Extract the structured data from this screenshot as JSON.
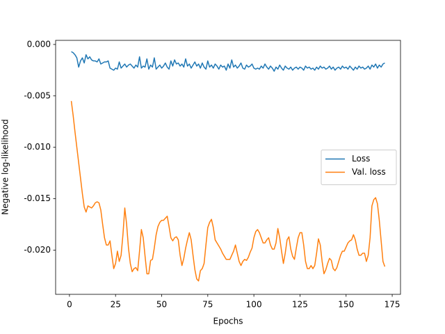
{
  "chart_data": {
    "type": "line",
    "xlabel": "Epochs",
    "ylabel": "Negative log-likelihood",
    "x": [
      1,
      2,
      3,
      4,
      5,
      6,
      7,
      8,
      9,
      10,
      11,
      12,
      13,
      14,
      15,
      16,
      17,
      18,
      19,
      20,
      21,
      22,
      23,
      24,
      25,
      26,
      27,
      28,
      29,
      30,
      31,
      32,
      33,
      34,
      35,
      36,
      37,
      38,
      39,
      40,
      41,
      42,
      43,
      44,
      45,
      46,
      47,
      48,
      49,
      50,
      51,
      52,
      53,
      54,
      55,
      56,
      57,
      58,
      59,
      60,
      61,
      62,
      63,
      64,
      65,
      66,
      67,
      68,
      69,
      70,
      71,
      72,
      73,
      74,
      75,
      76,
      77,
      78,
      79,
      80,
      81,
      82,
      83,
      84,
      85,
      86,
      87,
      88,
      89,
      90,
      91,
      92,
      93,
      94,
      95,
      96,
      97,
      98,
      99,
      100,
      101,
      102,
      103,
      104,
      105,
      106,
      107,
      108,
      109,
      110,
      111,
      112,
      113,
      114,
      115,
      116,
      117,
      118,
      119,
      120,
      121,
      122,
      123,
      124,
      125,
      126,
      127,
      128,
      129,
      130,
      131,
      132,
      133,
      134,
      135,
      136,
      137,
      138,
      139,
      140,
      141,
      142,
      143,
      144,
      145,
      146,
      147,
      148,
      149,
      150,
      151,
      152,
      153,
      154,
      155,
      156,
      157,
      158,
      159,
      160,
      161,
      162,
      163,
      164,
      165,
      166,
      167,
      168,
      169,
      170,
      171
    ],
    "series": [
      {
        "name": "Loss",
        "color": "#1f77b4",
        "values": [
          -0.0007,
          -0.0008,
          -0.001,
          -0.0013,
          -0.0022,
          -0.0016,
          -0.0013,
          -0.0018,
          -0.001,
          -0.0014,
          -0.0012,
          -0.0015,
          -0.0016,
          -0.0016,
          -0.0017,
          -0.0014,
          -0.0019,
          -0.0018,
          -0.0017,
          -0.0017,
          -0.0016,
          -0.0023,
          -0.0024,
          -0.0025,
          -0.0023,
          -0.0024,
          -0.0017,
          -0.0023,
          -0.0021,
          -0.0019,
          -0.0022,
          -0.002,
          -0.0019,
          -0.0021,
          -0.0023,
          -0.002,
          -0.0022,
          -0.0012,
          -0.0023,
          -0.0021,
          -0.0022,
          -0.0014,
          -0.0024,
          -0.002,
          -0.0022,
          -0.0013,
          -0.0024,
          -0.0022,
          -0.002,
          -0.0023,
          -0.0021,
          -0.0018,
          -0.0022,
          -0.0024,
          -0.0016,
          -0.0021,
          -0.0015,
          -0.0019,
          -0.0018,
          -0.0021,
          -0.0019,
          -0.0022,
          -0.0014,
          -0.0021,
          -0.0019,
          -0.0023,
          -0.002,
          -0.0017,
          -0.0021,
          -0.0019,
          -0.0023,
          -0.0018,
          -0.0022,
          -0.0024,
          -0.0016,
          -0.0022,
          -0.002,
          -0.0023,
          -0.0019,
          -0.0021,
          -0.0024,
          -0.002,
          -0.0022,
          -0.0021,
          -0.0025,
          -0.0019,
          -0.0023,
          -0.0015,
          -0.0022,
          -0.002,
          -0.0023,
          -0.0021,
          -0.0018,
          -0.0023,
          -0.0024,
          -0.002,
          -0.0022,
          -0.0021,
          -0.0019,
          -0.0023,
          -0.0024,
          -0.0023,
          -0.0024,
          -0.0021,
          -0.0023,
          -0.0019,
          -0.0022,
          -0.0024,
          -0.0021,
          -0.0023,
          -0.0026,
          -0.0022,
          -0.0024,
          -0.002,
          -0.0023,
          -0.0025,
          -0.0021,
          -0.0023,
          -0.0024,
          -0.0022,
          -0.0025,
          -0.0023,
          -0.0022,
          -0.0024,
          -0.0022,
          -0.0023,
          -0.0025,
          -0.0021,
          -0.0023,
          -0.0022,
          -0.0024,
          -0.0023,
          -0.0025,
          -0.0022,
          -0.0024,
          -0.0021,
          -0.0023,
          -0.0022,
          -0.0024,
          -0.0023,
          -0.0021,
          -0.0024,
          -0.0022,
          -0.0025,
          -0.0023,
          -0.0022,
          -0.0024,
          -0.0021,
          -0.0023,
          -0.0022,
          -0.0024,
          -0.0021,
          -0.0023,
          -0.0025,
          -0.0022,
          -0.0024,
          -0.0021,
          -0.0023,
          -0.0022,
          -0.0024,
          -0.0023,
          -0.0021,
          -0.0024,
          -0.002,
          -0.0022,
          -0.0019,
          -0.0023,
          -0.002,
          -0.0022,
          -0.0019,
          -0.0018
        ]
      },
      {
        "name": "Val. loss",
        "color": "#ff7f0e",
        "values": [
          -0.0055,
          -0.0069,
          -0.0085,
          -0.01,
          -0.0115,
          -0.013,
          -0.0145,
          -0.0158,
          -0.0163,
          -0.0157,
          -0.0158,
          -0.0159,
          -0.0157,
          -0.0154,
          -0.0153,
          -0.0154,
          -0.0161,
          -0.0175,
          -0.0188,
          -0.0195,
          -0.0195,
          -0.0191,
          -0.0205,
          -0.0218,
          -0.0213,
          -0.0201,
          -0.0211,
          -0.0205,
          -0.0185,
          -0.0159,
          -0.0175,
          -0.0198,
          -0.0213,
          -0.0221,
          -0.0218,
          -0.0217,
          -0.022,
          -0.0201,
          -0.018,
          -0.0188,
          -0.0206,
          -0.0223,
          -0.0223,
          -0.021,
          -0.0209,
          -0.0198,
          -0.0185,
          -0.0177,
          -0.0173,
          -0.0171,
          -0.0171,
          -0.0169,
          -0.0167,
          -0.0177,
          -0.0188,
          -0.0191,
          -0.0188,
          -0.0187,
          -0.019,
          -0.0205,
          -0.0215,
          -0.0208,
          -0.0198,
          -0.019,
          -0.0183,
          -0.019,
          -0.0205,
          -0.0219,
          -0.0228,
          -0.023,
          -0.022,
          -0.0218,
          -0.0213,
          -0.0195,
          -0.0178,
          -0.0173,
          -0.017,
          -0.0178,
          -0.019,
          -0.0193,
          -0.0196,
          -0.0199,
          -0.0203,
          -0.0206,
          -0.0209,
          -0.0209,
          -0.0209,
          -0.0205,
          -0.0201,
          -0.0195,
          -0.0203,
          -0.0211,
          -0.0215,
          -0.0211,
          -0.0209,
          -0.021,
          -0.0207,
          -0.0202,
          -0.0198,
          -0.0188,
          -0.0182,
          -0.018,
          -0.0183,
          -0.0188,
          -0.0193,
          -0.0193,
          -0.019,
          -0.0188,
          -0.0195,
          -0.0199,
          -0.0199,
          -0.0193,
          -0.0179,
          -0.0188,
          -0.0201,
          -0.0213,
          -0.0203,
          -0.019,
          -0.0187,
          -0.0199,
          -0.0206,
          -0.0209,
          -0.0198,
          -0.0188,
          -0.0183,
          -0.0183,
          -0.0195,
          -0.0211,
          -0.0218,
          -0.0218,
          -0.0215,
          -0.0218,
          -0.0215,
          -0.0203,
          -0.0189,
          -0.0195,
          -0.0211,
          -0.0223,
          -0.0219,
          -0.0213,
          -0.0208,
          -0.021,
          -0.0218,
          -0.022,
          -0.0217,
          -0.0211,
          -0.0205,
          -0.0201,
          -0.0201,
          -0.0197,
          -0.0193,
          -0.0191,
          -0.019,
          -0.0185,
          -0.019,
          -0.0199,
          -0.0205,
          -0.0205,
          -0.0203,
          -0.0203,
          -0.0211,
          -0.0205,
          -0.0188,
          -0.0157,
          -0.0151,
          -0.0149,
          -0.0155,
          -0.0171,
          -0.0191,
          -0.0211,
          -0.0216
        ]
      }
    ],
    "xlim": [
      -7.5,
      179.5
    ],
    "xticks": [
      0,
      25,
      50,
      75,
      100,
      125,
      150,
      175
    ],
    "ylim": [
      -0.0243,
      0.0004
    ],
    "yticks": [
      {
        "value": 0,
        "label": "0.000"
      },
      {
        "value": -0.005,
        "label": "-0.005"
      },
      {
        "value": -0.01,
        "label": "-0.010"
      },
      {
        "value": -0.015,
        "label": "-0.015"
      },
      {
        "value": -0.02,
        "label": "-0.020"
      }
    ],
    "legend": "center right",
    "grid": false
  }
}
